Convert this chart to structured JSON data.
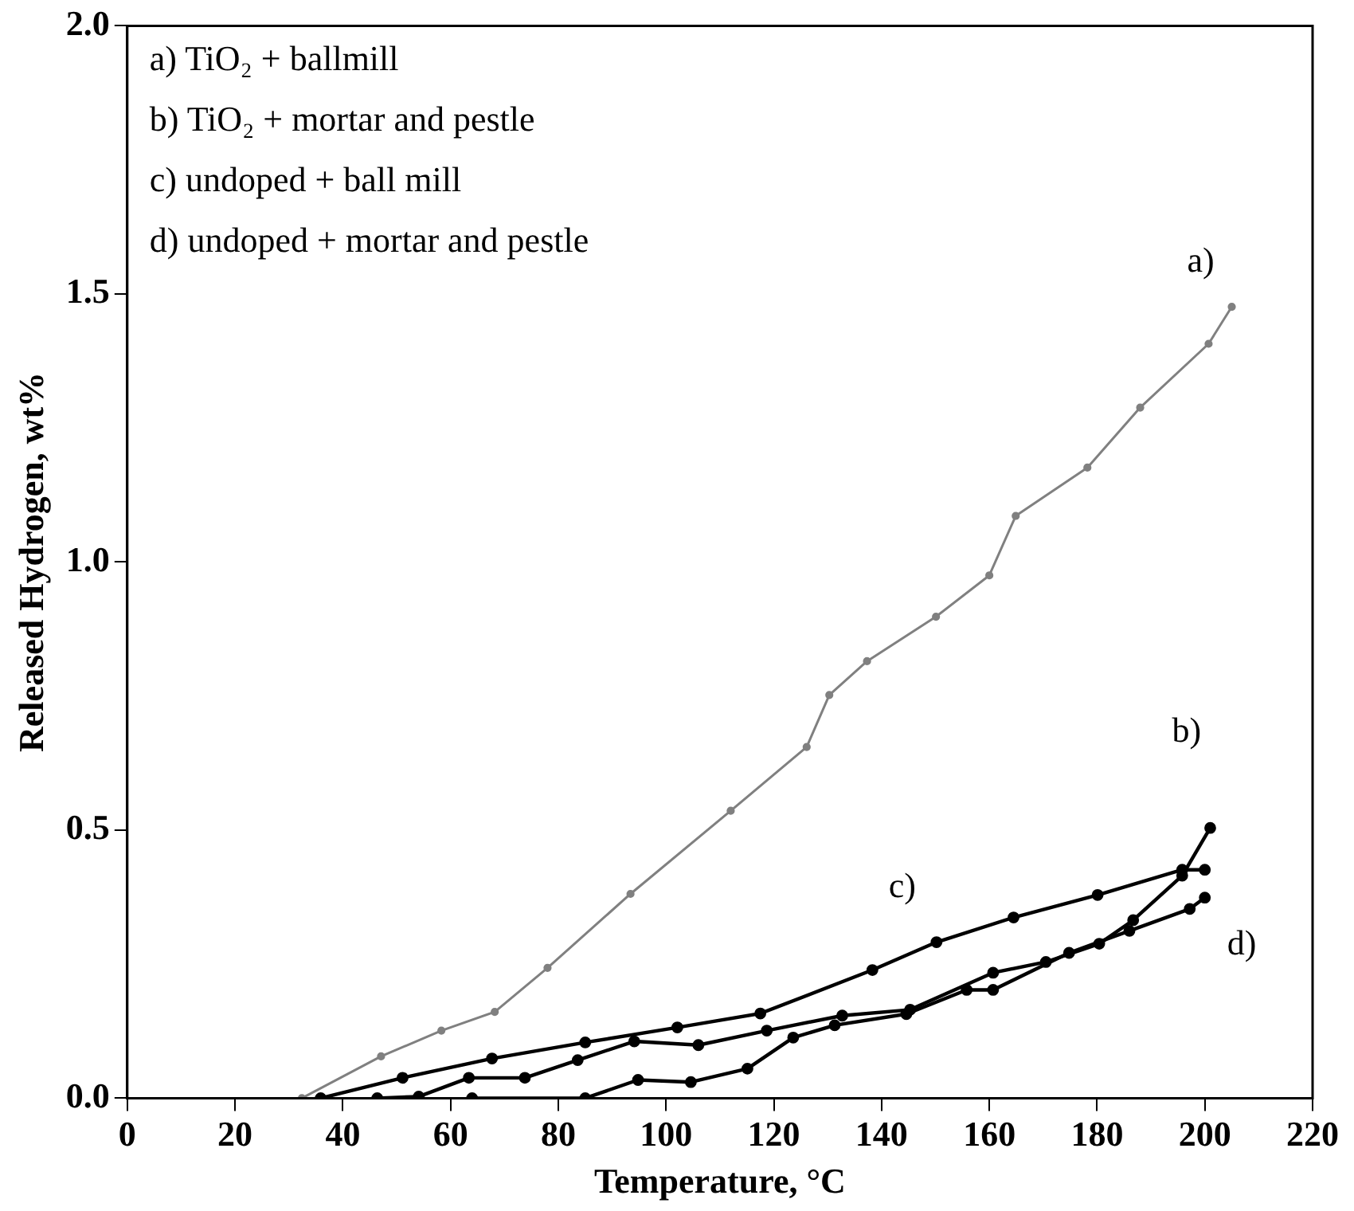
{
  "chart_data": {
    "type": "line",
    "xlabel": "Temperature, °C",
    "ylabel": "Released Hydrogen, wt%",
    "xlim": [
      0,
      220
    ],
    "xticks": [
      0,
      20,
      40,
      60,
      80,
      100,
      120,
      140,
      160,
      180,
      200,
      220
    ],
    "ylim": [
      0,
      2
    ],
    "yticks": [
      {
        "value": 0,
        "label": "0.0"
      },
      {
        "value": 0.5,
        "label": "0.5"
      },
      {
        "value": 1,
        "label": "1.0"
      },
      {
        "value": 1.5,
        "label": "1.5"
      },
      {
        "value": 2,
        "label": "2.0"
      }
    ],
    "grid": false,
    "marker": "circle",
    "line_style": "solid",
    "series": [
      {
        "name": "a)",
        "color": "#808080",
        "x": [
          32.4,
          47.1,
          58.3,
          68.2,
          78,
          93.4,
          112,
          126.1,
          130.3,
          137.3,
          150.1,
          160,
          164.9,
          178.2,
          188,
          200.7,
          205
        ],
        "values": [
          0,
          0.078,
          0.126,
          0.161,
          0.243,
          0.381,
          0.536,
          0.655,
          0.752,
          0.815,
          0.898,
          0.975,
          1.086,
          1.176,
          1.288,
          1.407,
          1.476
        ]
      },
      {
        "name": "b)",
        "color": "#000000",
        "x": [
          46.4,
          54.1,
          63.4,
          73.8,
          83.6,
          94.1,
          106,
          118.7,
          132.7,
          145.3,
          160.7,
          170.5,
          180.4,
          186.7,
          195.8,
          201
        ],
        "values": [
          0,
          0.003,
          0.038,
          0.038,
          0.071,
          0.106,
          0.099,
          0.126,
          0.154,
          0.165,
          0.234,
          0.254,
          0.288,
          0.332,
          0.415,
          0.504
        ]
      },
      {
        "name": "c)",
        "color": "#000000",
        "x": [
          35.9,
          51.1,
          67.7,
          85,
          102.1,
          117.5,
          138.3,
          150.2,
          164.5,
          180.1,
          195.8,
          200
        ],
        "values": [
          0,
          0.038,
          0.074,
          0.104,
          0.132,
          0.158,
          0.239,
          0.291,
          0.337,
          0.379,
          0.426,
          0.426
        ]
      },
      {
        "name": "d)",
        "color": "#000000",
        "x": [
          64,
          85,
          94.8,
          104.6,
          115.1,
          123.6,
          131.3,
          144.6,
          155.8,
          160.7,
          174.8,
          186,
          197.2,
          200
        ],
        "values": [
          0,
          0,
          0.034,
          0.03,
          0.055,
          0.113,
          0.136,
          0.157,
          0.202,
          0.202,
          0.271,
          0.312,
          0.353,
          0.374
        ]
      }
    ],
    "annotations": [
      "a) TiO₂ + ballmill",
      "b) TiO₂ + mortar and pestle",
      "c) undoped + ball mill",
      "d) undoped + mortar and pestle"
    ]
  }
}
